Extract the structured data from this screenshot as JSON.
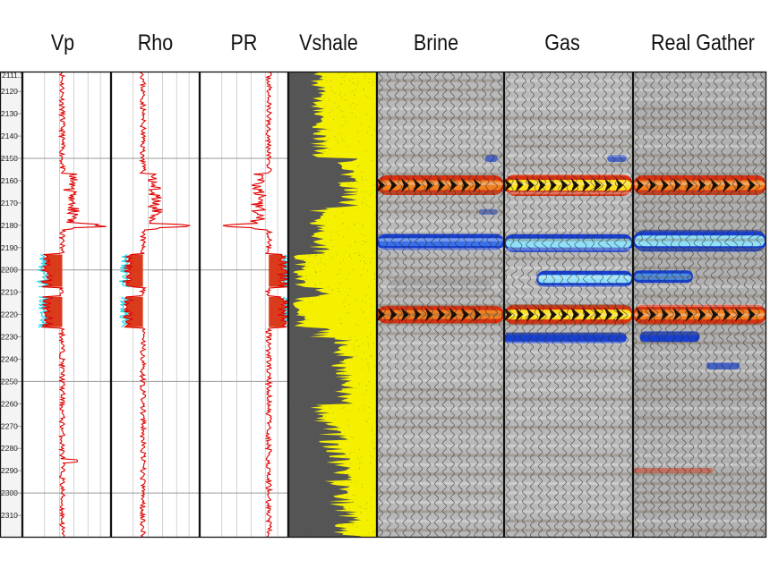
{
  "headers": {
    "vp": "Vp",
    "rho": "Rho",
    "pr": "PR",
    "vshale": "Vshale",
    "brine": "Brine",
    "gas": "Gas",
    "real_gather": "Real Gather"
  },
  "chart_data": {
    "type": "line",
    "y_axis": {
      "unit": "depth",
      "range": [
        2111.1,
        2320
      ],
      "top_label": "2111.1",
      "tick_labels": [
        "2120",
        "2130",
        "2140",
        "2150",
        "2160",
        "2170",
        "2180",
        "2190",
        "2200",
        "2210",
        "2220",
        "2230",
        "2240",
        "2250",
        "2260",
        "2270",
        "2280",
        "2290",
        "2300",
        "2310"
      ],
      "bold_gridlines": [
        2150,
        2200,
        2250,
        2300
      ],
      "inverted": true
    },
    "tracks": [
      {
        "name": "Vp",
        "kind": "log-curve",
        "curve_color": "#e00000",
        "fill_color": "#ff2020",
        "highlight_color": "#22d8e8"
      },
      {
        "name": "Rho",
        "kind": "log-curve",
        "curve_color": "#e00000",
        "fill_color": "#ff2020",
        "highlight_color": "#22d8e8"
      },
      {
        "name": "PR",
        "kind": "log-curve",
        "curve_color": "#e00000",
        "fill_color": "#ff2020",
        "highlight_color": "#22d8e8"
      },
      {
        "name": "Vshale",
        "kind": "area",
        "sand_color": "#f4f000",
        "shale_color": "#555555"
      },
      {
        "name": "Brine",
        "kind": "seismic-gather"
      },
      {
        "name": "Gas",
        "kind": "seismic-gather"
      },
      {
        "name": "Real Gather",
        "kind": "seismic-gather"
      }
    ],
    "reservoir_zones": [
      [
        2193,
        2208
      ],
      [
        2212,
        2226
      ]
    ],
    "seismic_events": [
      {
        "depth": 2162,
        "polarity": "peak",
        "tracks": [
          "Brine",
          "Gas",
          "Real Gather"
        ]
      },
      {
        "depth": 2188,
        "polarity": "trough",
        "tracks": [
          "Brine",
          "Gas",
          "Real Gather"
        ]
      },
      {
        "depth": 2206,
        "polarity": "trough",
        "tracks": [
          "Gas",
          "Real Gather"
        ]
      },
      {
        "depth": 2220,
        "polarity": "peak",
        "tracks": [
          "Brine",
          "Gas",
          "Real Gather"
        ]
      },
      {
        "depth": 2230,
        "polarity": "trough",
        "tracks": [
          "Gas",
          "Real Gather"
        ]
      }
    ],
    "colors": {
      "peak_dark": "#1a1008",
      "peak_red": "#d83010",
      "peak_orange": "#f08020",
      "peak_yellow": "#ffe020",
      "trough_blue": "#1840d0",
      "trough_light": "#90e0f8",
      "background_gray": "#b8b8b8",
      "wiggle_line": "#222222",
      "log_grid": "#c8c8c8"
    }
  }
}
